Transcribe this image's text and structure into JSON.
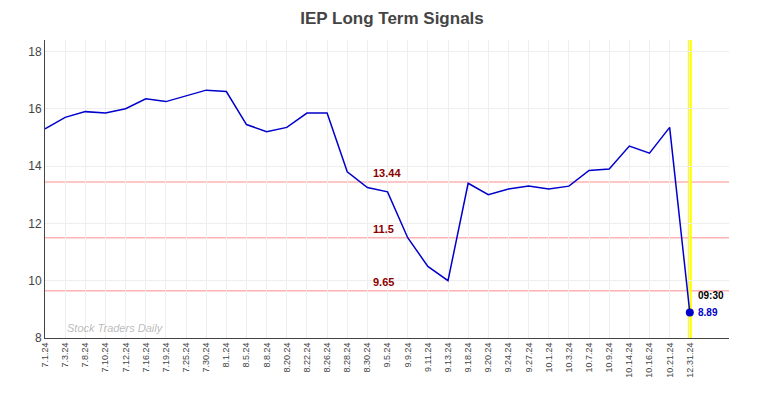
{
  "chart_data": {
    "type": "line",
    "title": "IEP Long Term Signals",
    "categories": [
      "7.1.24",
      "7.3.24",
      "7.8.24",
      "7.10.24",
      "7.12.24",
      "7.16.24",
      "7.19.24",
      "7.25.24",
      "7.30.24",
      "8.1.24",
      "8.5.24",
      "8.8.24",
      "8.20.24",
      "8.22.24",
      "8.26.24",
      "8.28.24",
      "8.30.24",
      "9.5.24",
      "9.9.24",
      "9.11.24",
      "9.13.24",
      "9.18.24",
      "9.20.24",
      "9.24.24",
      "9.27.24",
      "10.1.24",
      "10.3.24",
      "10.7.24",
      "10.9.24",
      "10.14.24",
      "10.16.24",
      "10.21.24",
      "12.31.24"
    ],
    "values": [
      15.3,
      15.7,
      15.9,
      15.85,
      16.0,
      16.35,
      16.25,
      16.45,
      16.65,
      16.6,
      15.45,
      15.2,
      15.35,
      15.85,
      15.85,
      13.8,
      13.25,
      13.1,
      11.5,
      10.5,
      10.0,
      13.4,
      13.0,
      13.2,
      13.3,
      13.2,
      13.3,
      13.85,
      13.9,
      14.7,
      14.45,
      15.35,
      8.89
    ],
    "color": "#0000cc",
    "ylim": [
      8,
      18.4
    ],
    "yticks": [
      8,
      10,
      12,
      14,
      16,
      18
    ],
    "grid": true,
    "reference_lines": [
      {
        "value": 13.44,
        "label": "13.44",
        "color": "#ffb3b3"
      },
      {
        "value": 11.5,
        "label": "11.5",
        "color": "#ffb3b3"
      },
      {
        "value": 9.65,
        "label": "9.65",
        "color": "#ffb3b3"
      }
    ],
    "last_point": {
      "label": "09:30",
      "value_label": "8.89",
      "color": "#ffff00"
    },
    "watermark": "Stock Traders Daily"
  }
}
